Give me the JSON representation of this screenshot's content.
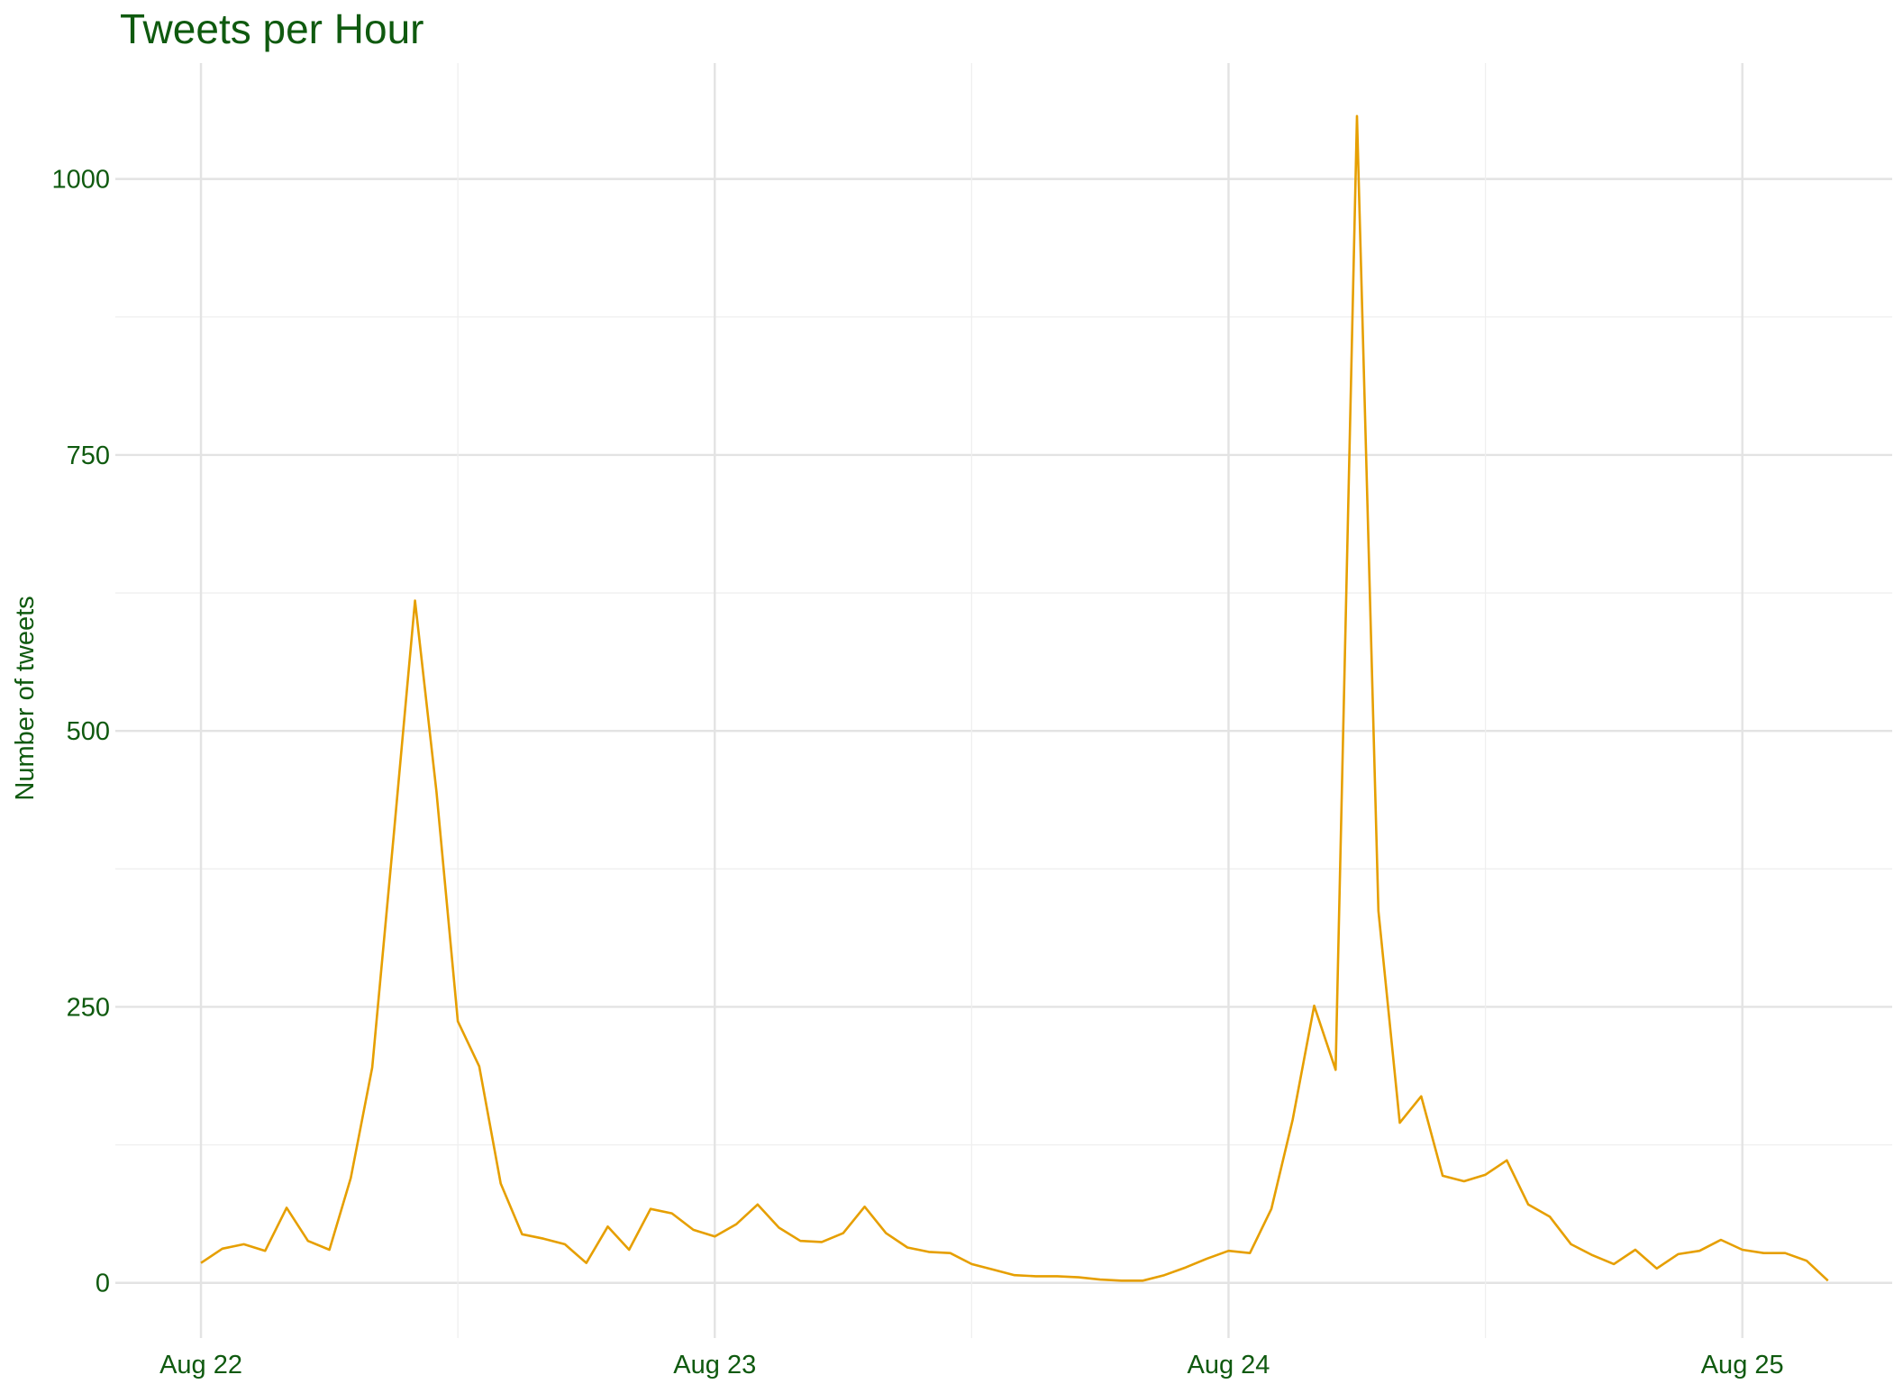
{
  "chart_data": {
    "type": "line",
    "title": "Tweets per Hour",
    "xlabel": "",
    "ylabel": "Number of tweets",
    "x_unit": "date-hour",
    "x_ticks": [
      {
        "label": "Aug 22",
        "value": "2019-08-22T00:00"
      },
      {
        "label": "Aug 23",
        "value": "2019-08-23T00:00"
      },
      {
        "label": "Aug 24",
        "value": "2019-08-24T00:00"
      },
      {
        "label": "Aug 25",
        "value": "2019-08-25T00:00"
      }
    ],
    "y_ticks": [
      0,
      250,
      500,
      750,
      1000
    ],
    "ylim": [
      -50,
      1105
    ],
    "xlim": [
      "2019-08-21T20:00",
      "2019-08-25T07:00"
    ],
    "grid": true,
    "legend": "none",
    "line_color": "#E69F00",
    "series": [
      {
        "x": [
          "2019-08-22T00:00",
          "2019-08-22T01:00",
          "2019-08-22T02:00",
          "2019-08-22T03:00",
          "2019-08-22T04:00",
          "2019-08-22T05:00",
          "2019-08-22T06:00",
          "2019-08-22T07:00",
          "2019-08-22T08:00",
          "2019-08-22T09:00",
          "2019-08-22T10:00",
          "2019-08-22T11:00",
          "2019-08-22T12:00",
          "2019-08-22T13:00",
          "2019-08-22T14:00",
          "2019-08-22T15:00",
          "2019-08-22T16:00",
          "2019-08-22T17:00",
          "2019-08-22T18:00",
          "2019-08-22T19:00",
          "2019-08-22T20:00",
          "2019-08-22T21:00",
          "2019-08-22T22:00",
          "2019-08-22T23:00",
          "2019-08-23T00:00",
          "2019-08-23T01:00",
          "2019-08-23T02:00",
          "2019-08-23T03:00",
          "2019-08-23T04:00",
          "2019-08-23T05:00",
          "2019-08-23T06:00",
          "2019-08-23T07:00",
          "2019-08-23T08:00",
          "2019-08-23T09:00",
          "2019-08-23T10:00",
          "2019-08-23T11:00",
          "2019-08-23T12:00",
          "2019-08-23T13:00",
          "2019-08-23T14:00",
          "2019-08-23T15:00",
          "2019-08-23T16:00",
          "2019-08-23T17:00",
          "2019-08-23T18:00",
          "2019-08-23T19:00",
          "2019-08-23T20:00",
          "2019-08-23T21:00",
          "2019-08-23T22:00",
          "2019-08-23T23:00",
          "2019-08-24T00:00",
          "2019-08-24T01:00",
          "2019-08-24T02:00",
          "2019-08-24T03:00",
          "2019-08-24T04:00",
          "2019-08-24T05:00",
          "2019-08-24T06:00",
          "2019-08-24T07:00",
          "2019-08-24T08:00",
          "2019-08-24T09:00",
          "2019-08-24T10:00",
          "2019-08-24T11:00",
          "2019-08-24T12:00",
          "2019-08-24T13:00",
          "2019-08-24T14:00",
          "2019-08-24T15:00",
          "2019-08-24T16:00",
          "2019-08-24T17:00",
          "2019-08-24T18:00",
          "2019-08-24T19:00",
          "2019-08-24T20:00",
          "2019-08-24T21:00",
          "2019-08-24T22:00",
          "2019-08-24T23:00",
          "2019-08-25T00:00",
          "2019-08-25T01:00",
          "2019-08-25T02:00",
          "2019-08-25T03:00",
          "2019-08-25T04:00"
        ],
        "values": [
          18,
          31,
          35,
          29,
          68,
          38,
          30,
          95,
          195,
          405,
          618,
          445,
          237,
          196,
          90,
          44,
          40,
          35,
          18,
          51,
          30,
          67,
          63,
          48,
          42,
          53,
          71,
          50,
          38,
          37,
          45,
          69,
          45,
          32,
          28,
          27,
          17,
          12,
          7,
          6,
          6,
          5,
          3,
          2,
          2,
          7,
          14,
          22,
          29,
          27,
          67,
          148,
          251,
          193,
          1057,
          337,
          145,
          169,
          97,
          92,
          98,
          111,
          71,
          60,
          35,
          25,
          17,
          30,
          13,
          26,
          29,
          39,
          30,
          27,
          27,
          20,
          2
        ]
      }
    ]
  }
}
